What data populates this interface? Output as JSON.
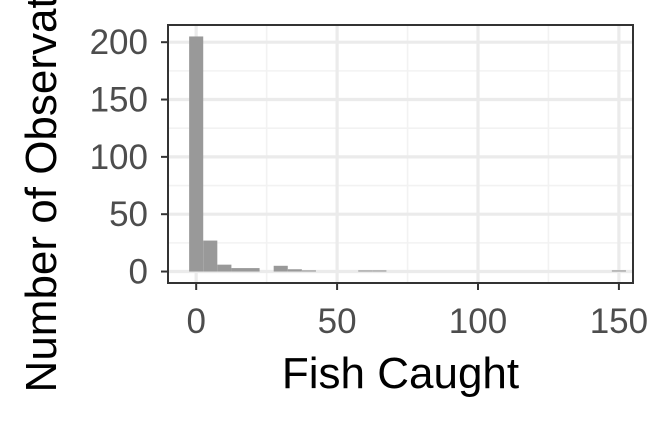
{
  "chart_data": {
    "type": "bar",
    "title": "",
    "xlabel": "Fish Caught",
    "ylabel": "Number of Observations",
    "xlim": [
      -10,
      155
    ],
    "ylim": [
      -10,
      215
    ],
    "x_ticks": [
      0,
      50,
      100,
      150
    ],
    "y_ticks": [
      0,
      50,
      100,
      150,
      200
    ],
    "x_tick_labels": [
      "0",
      "50",
      "100",
      "150"
    ],
    "y_tick_labels": [
      "0",
      "50",
      "100",
      "150",
      "200"
    ],
    "grid": true,
    "legend": "none",
    "bin_width": 5,
    "bins": [
      {
        "start": -2.5,
        "end": 2.5,
        "count": 205
      },
      {
        "start": 2.5,
        "end": 7.5,
        "count": 27
      },
      {
        "start": 7.5,
        "end": 12.5,
        "count": 6
      },
      {
        "start": 12.5,
        "end": 17.5,
        "count": 3
      },
      {
        "start": 17.5,
        "end": 22.5,
        "count": 3
      },
      {
        "start": 22.5,
        "end": 27.5,
        "count": 0
      },
      {
        "start": 27.5,
        "end": 32.5,
        "count": 5
      },
      {
        "start": 32.5,
        "end": 37.5,
        "count": 2
      },
      {
        "start": 37.5,
        "end": 42.5,
        "count": 1
      },
      {
        "start": 57.5,
        "end": 62.5,
        "count": 1
      },
      {
        "start": 62.5,
        "end": 67.5,
        "count": 1
      },
      {
        "start": 147.5,
        "end": 152.5,
        "count": 1
      }
    ],
    "colors": {
      "bar": "#999999",
      "panel_border": "#333333",
      "grid_major": "#ebebeb",
      "grid_minor": "#f2f2f2"
    }
  }
}
